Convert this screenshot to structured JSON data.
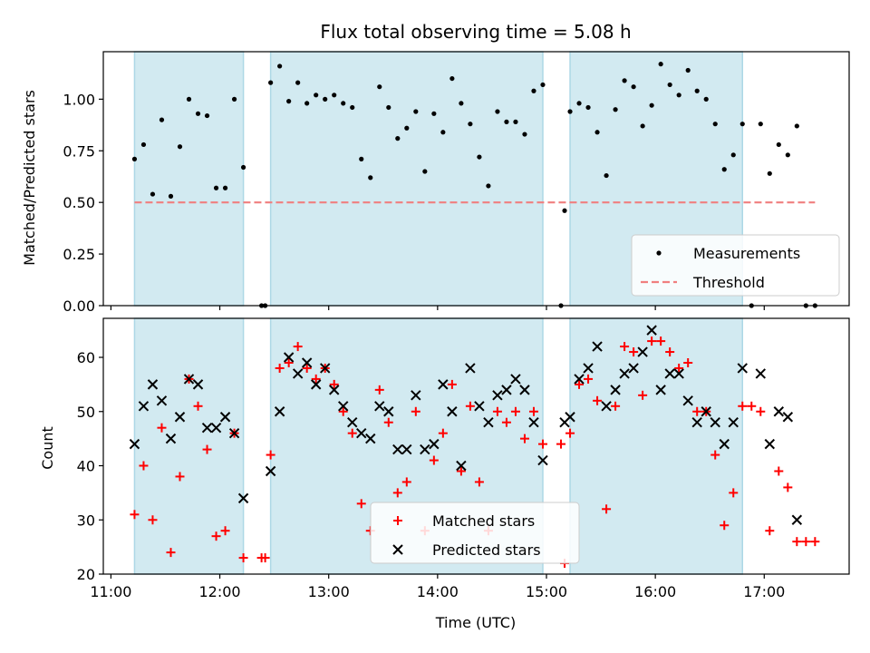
{
  "chart_data": [
    {
      "type": "scatter",
      "title": "Flux total observing time = 5.08 h",
      "xlabel": "",
      "ylabel": "Matched/Predicted stars",
      "ylim": [
        0,
        1.23
      ],
      "yticks": [
        "0.00",
        "0.25",
        "0.50",
        "0.75",
        "1.00"
      ],
      "legend": {
        "position": "lower-right",
        "entries": [
          "Measurements",
          "Threshold"
        ]
      },
      "threshold": {
        "name": "Threshold",
        "value": 0.5,
        "x_range": [
          "11:13",
          "17:28"
        ],
        "color": "#f07f7f"
      },
      "series": [
        {
          "name": "Measurements",
          "color": "#000000",
          "points": [
            [
              "11:13",
              0.71
            ],
            [
              "11:18",
              0.78
            ],
            [
              "11:23",
              0.54
            ],
            [
              "11:28",
              0.9
            ],
            [
              "11:33",
              0.53
            ],
            [
              "11:38",
              0.77
            ],
            [
              "11:43",
              1.0
            ],
            [
              "11:48",
              0.93
            ],
            [
              "11:53",
              0.92
            ],
            [
              "11:58",
              0.57
            ],
            [
              "12:03",
              0.57
            ],
            [
              "12:08",
              1.0
            ],
            [
              "12:13",
              0.67
            ],
            [
              "12:23",
              0.0
            ],
            [
              "12:25",
              0.0
            ],
            [
              "12:28",
              1.08
            ],
            [
              "12:33",
              1.16
            ],
            [
              "12:38",
              0.99
            ],
            [
              "12:43",
              1.08
            ],
            [
              "12:48",
              0.98
            ],
            [
              "12:53",
              1.02
            ],
            [
              "12:58",
              1.0
            ],
            [
              "13:03",
              1.02
            ],
            [
              "13:08",
              0.98
            ],
            [
              "13:13",
              0.96
            ],
            [
              "13:18",
              0.71
            ],
            [
              "13:23",
              0.62
            ],
            [
              "13:28",
              1.06
            ],
            [
              "13:33",
              0.96
            ],
            [
              "13:38",
              0.81
            ],
            [
              "13:43",
              0.86
            ],
            [
              "13:48",
              0.94
            ],
            [
              "13:53",
              0.65
            ],
            [
              "13:58",
              0.93
            ],
            [
              "14:03",
              0.84
            ],
            [
              "14:08",
              1.1
            ],
            [
              "14:13",
              0.98
            ],
            [
              "14:18",
              0.88
            ],
            [
              "14:23",
              0.72
            ],
            [
              "14:28",
              0.58
            ],
            [
              "14:33",
              0.94
            ],
            [
              "14:38",
              0.89
            ],
            [
              "14:43",
              0.89
            ],
            [
              "14:48",
              0.83
            ],
            [
              "14:53",
              1.04
            ],
            [
              "14:58",
              1.07
            ],
            [
              "15:08",
              0.0
            ],
            [
              "15:10",
              0.46
            ],
            [
              "15:13",
              0.94
            ],
            [
              "15:18",
              0.98
            ],
            [
              "15:23",
              0.96
            ],
            [
              "15:28",
              0.84
            ],
            [
              "15:33",
              0.63
            ],
            [
              "15:38",
              0.95
            ],
            [
              "15:43",
              1.09
            ],
            [
              "15:48",
              1.06
            ],
            [
              "15:53",
              0.87
            ],
            [
              "15:58",
              0.97
            ],
            [
              "16:03",
              1.17
            ],
            [
              "16:08",
              1.07
            ],
            [
              "16:13",
              1.02
            ],
            [
              "16:18",
              1.14
            ],
            [
              "16:23",
              1.04
            ],
            [
              "16:28",
              1.0
            ],
            [
              "16:33",
              0.88
            ],
            [
              "16:38",
              0.66
            ],
            [
              "16:43",
              0.73
            ],
            [
              "16:48",
              0.88
            ],
            [
              "16:53",
              0.0
            ],
            [
              "16:58",
              0.88
            ],
            [
              "17:03",
              0.64
            ],
            [
              "17:08",
              0.78
            ],
            [
              "17:13",
              0.73
            ],
            [
              "17:18",
              0.87
            ],
            [
              "17:23",
              0.0
            ],
            [
              "17:28",
              0.0
            ]
          ]
        }
      ],
      "shaded_windows": [
        [
          "11:13",
          "12:13"
        ],
        [
          "12:28",
          "14:58"
        ],
        [
          "15:13",
          "16:48"
        ]
      ],
      "shade_color": "#add8e6"
    },
    {
      "type": "scatter",
      "title": "",
      "xlabel": "Time (UTC)",
      "ylabel": "Count",
      "ylim": [
        20,
        67.2
      ],
      "yticks": [
        "20",
        "30",
        "40",
        "50",
        "60"
      ],
      "xticks": [
        "11:00",
        "12:00",
        "13:00",
        "14:00",
        "15:00",
        "16:00",
        "17:00"
      ],
      "legend": {
        "position": "lower-center",
        "entries": [
          "Matched stars",
          "Predicted stars"
        ]
      },
      "series": [
        {
          "name": "Matched stars",
          "marker": "plus",
          "color": "#ff0000",
          "points": [
            [
              "11:13",
              31
            ],
            [
              "11:18",
              40
            ],
            [
              "11:23",
              30
            ],
            [
              "11:28",
              47
            ],
            [
              "11:33",
              24
            ],
            [
              "11:38",
              38
            ],
            [
              "11:43",
              56
            ],
            [
              "11:48",
              51
            ],
            [
              "11:53",
              43
            ],
            [
              "11:58",
              27
            ],
            [
              "12:03",
              28
            ],
            [
              "12:08",
              46
            ],
            [
              "12:13",
              23
            ],
            [
              "12:23",
              23
            ],
            [
              "12:25",
              23
            ],
            [
              "12:28",
              42
            ],
            [
              "12:33",
              58
            ],
            [
              "12:38",
              59
            ],
            [
              "12:43",
              62
            ],
            [
              "12:48",
              58
            ],
            [
              "12:53",
              56
            ],
            [
              "12:58",
              58
            ],
            [
              "13:03",
              55
            ],
            [
              "13:08",
              50
            ],
            [
              "13:13",
              46
            ],
            [
              "13:18",
              33
            ],
            [
              "13:23",
              28
            ],
            [
              "13:28",
              54
            ],
            [
              "13:33",
              48
            ],
            [
              "13:38",
              35
            ],
            [
              "13:43",
              37
            ],
            [
              "13:48",
              50
            ],
            [
              "13:53",
              28
            ],
            [
              "13:58",
              41
            ],
            [
              "14:03",
              46
            ],
            [
              "14:08",
              55
            ],
            [
              "14:13",
              39
            ],
            [
              "14:18",
              51
            ],
            [
              "14:23",
              37
            ],
            [
              "14:28",
              28
            ],
            [
              "14:33",
              50
            ],
            [
              "14:38",
              48
            ],
            [
              "14:43",
              50
            ],
            [
              "14:48",
              45
            ],
            [
              "14:53",
              50
            ],
            [
              "14:58",
              44
            ],
            [
              "15:08",
              44
            ],
            [
              "15:10",
              22
            ],
            [
              "15:13",
              46
            ],
            [
              "15:18",
              55
            ],
            [
              "15:23",
              56
            ],
            [
              "15:28",
              52
            ],
            [
              "15:33",
              32
            ],
            [
              "15:38",
              51
            ],
            [
              "15:43",
              62
            ],
            [
              "15:48",
              61
            ],
            [
              "15:53",
              53
            ],
            [
              "15:58",
              63
            ],
            [
              "16:03",
              63
            ],
            [
              "16:08",
              61
            ],
            [
              "16:13",
              58
            ],
            [
              "16:18",
              59
            ],
            [
              "16:23",
              50
            ],
            [
              "16:28",
              50
            ],
            [
              "16:33",
              42
            ],
            [
              "16:38",
              29
            ],
            [
              "16:43",
              35
            ],
            [
              "16:48",
              51
            ],
            [
              "16:53",
              51
            ],
            [
              "16:58",
              50
            ],
            [
              "17:03",
              28
            ],
            [
              "17:08",
              39
            ],
            [
              "17:13",
              36
            ],
            [
              "17:18",
              26
            ],
            [
              "17:23",
              26
            ],
            [
              "17:28",
              26
            ]
          ]
        },
        {
          "name": "Predicted stars",
          "marker": "x",
          "color": "#000000",
          "points": [
            [
              "11:13",
              44
            ],
            [
              "11:18",
              51
            ],
            [
              "11:23",
              55
            ],
            [
              "11:28",
              52
            ],
            [
              "11:33",
              45
            ],
            [
              "11:38",
              49
            ],
            [
              "11:43",
              56
            ],
            [
              "11:48",
              55
            ],
            [
              "11:53",
              47
            ],
            [
              "11:58",
              47
            ],
            [
              "12:03",
              49
            ],
            [
              "12:08",
              46
            ],
            [
              "12:13",
              34
            ],
            [
              "12:28",
              39
            ],
            [
              "12:33",
              50
            ],
            [
              "12:38",
              60
            ],
            [
              "12:43",
              57
            ],
            [
              "12:48",
              59
            ],
            [
              "12:53",
              55
            ],
            [
              "12:58",
              58
            ],
            [
              "13:03",
              54
            ],
            [
              "13:08",
              51
            ],
            [
              "13:13",
              48
            ],
            [
              "13:18",
              46
            ],
            [
              "13:23",
              45
            ],
            [
              "13:28",
              51
            ],
            [
              "13:33",
              50
            ],
            [
              "13:38",
              43
            ],
            [
              "13:43",
              43
            ],
            [
              "13:48",
              53
            ],
            [
              "13:53",
              43
            ],
            [
              "13:58",
              44
            ],
            [
              "14:03",
              55
            ],
            [
              "14:08",
              50
            ],
            [
              "14:13",
              40
            ],
            [
              "14:18",
              58
            ],
            [
              "14:23",
              51
            ],
            [
              "14:28",
              48
            ],
            [
              "14:33",
              53
            ],
            [
              "14:38",
              54
            ],
            [
              "14:43",
              56
            ],
            [
              "14:48",
              54
            ],
            [
              "14:53",
              48
            ],
            [
              "14:58",
              41
            ],
            [
              "15:10",
              48
            ],
            [
              "15:13",
              49
            ],
            [
              "15:18",
              56
            ],
            [
              "15:23",
              58
            ],
            [
              "15:28",
              62
            ],
            [
              "15:33",
              51
            ],
            [
              "15:38",
              54
            ],
            [
              "15:43",
              57
            ],
            [
              "15:48",
              58
            ],
            [
              "15:53",
              61
            ],
            [
              "15:58",
              65
            ],
            [
              "16:03",
              54
            ],
            [
              "16:08",
              57
            ],
            [
              "16:13",
              57
            ],
            [
              "16:18",
              52
            ],
            [
              "16:23",
              48
            ],
            [
              "16:28",
              50
            ],
            [
              "16:33",
              48
            ],
            [
              "16:38",
              44
            ],
            [
              "16:43",
              48
            ],
            [
              "16:48",
              58
            ],
            [
              "16:58",
              57
            ],
            [
              "17:03",
              44
            ],
            [
              "17:08",
              50
            ],
            [
              "17:13",
              49
            ],
            [
              "17:18",
              30
            ]
          ]
        }
      ],
      "shaded_windows": [
        [
          "11:13",
          "12:13"
        ],
        [
          "12:28",
          "14:58"
        ],
        [
          "15:13",
          "16:48"
        ]
      ],
      "shade_color": "#add8e6"
    }
  ]
}
